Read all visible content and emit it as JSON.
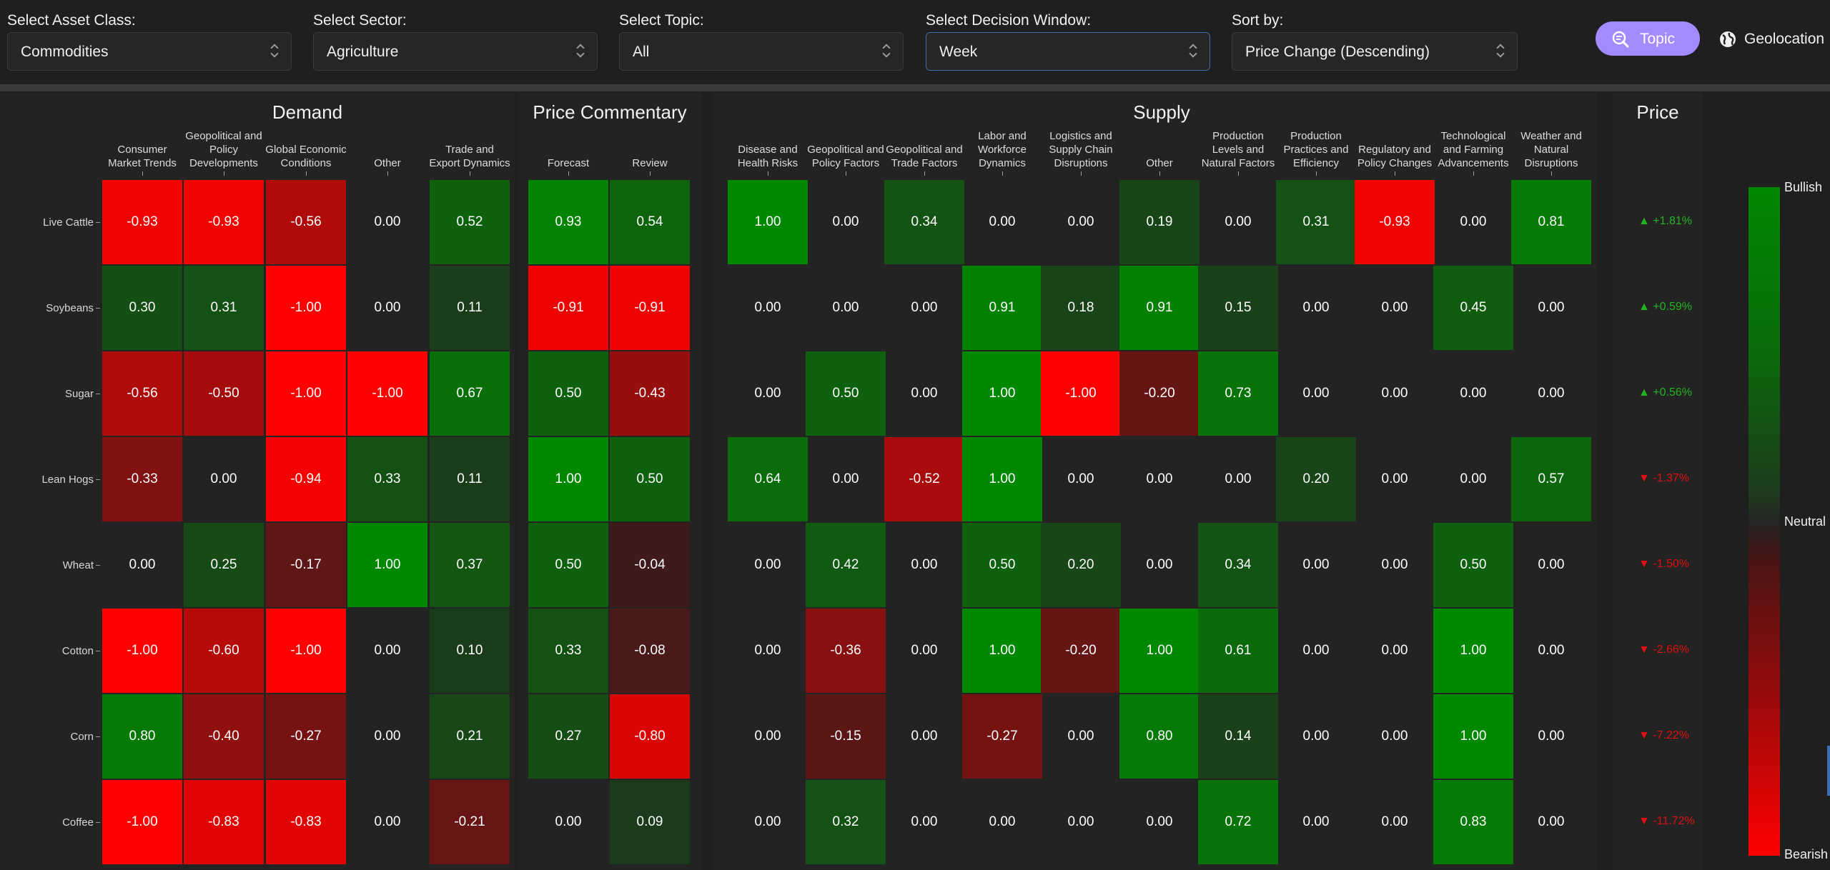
{
  "filters": {
    "asset_class": {
      "label": "Select Asset Class:",
      "value": "Commodities"
    },
    "sector": {
      "label": "Select Sector:",
      "value": "Agriculture"
    },
    "topic": {
      "label": "Select Topic:",
      "value": "All"
    },
    "window": {
      "label": "Select Decision Window:",
      "value": "Week"
    },
    "sort": {
      "label": "Sort by:",
      "value": "Price Change (Descending)"
    }
  },
  "view_toggle": {
    "topic": "Topic",
    "geolocation": "Geolocation",
    "active": "topic"
  },
  "colors": {
    "bullish": "#008800",
    "neutral": "#252525",
    "bearish": "#ff0000",
    "up": "#22b422",
    "down": "#e01010",
    "accent": "#a28bff"
  },
  "heatmap": {
    "groups": [
      {
        "title": "Demand",
        "columns": [
          "Consumer Market Trends",
          "Geopolitical and Policy Developments",
          "Global Economic Conditions",
          "Other",
          "Trade and Export Dynamics"
        ]
      },
      {
        "title": "Price Commentary",
        "columns": [
          "Forecast",
          "Review"
        ]
      },
      {
        "title": "Supply",
        "columns": [
          "Disease and Health Risks",
          "Geopolitical and Policy Factors",
          "Geopolitical and Trade Factors",
          "Labor and Workforce Dynamics",
          "Logistics and Supply Chain Disruptions",
          "Other",
          "Production Levels and Natural Factors",
          "Production Practices and Efficiency",
          "Regulatory and Policy Changes",
          "Technological and Farming Advancements",
          "Weather and Natural Disruptions"
        ]
      }
    ],
    "price_title": "Price",
    "rows": [
      {
        "name": "Live Cattle",
        "demand": [
          "-0.93",
          "-0.93",
          "-0.56",
          "0.00",
          "0.52"
        ],
        "commentary": [
          "0.93",
          "0.54"
        ],
        "supply": [
          "1.00",
          "0.00",
          "0.34",
          "0.00",
          "0.00",
          "0.19",
          "0.00",
          "0.31",
          "-0.93",
          "0.00",
          "0.81"
        ],
        "price": "▲ +1.81%",
        "price_dir": "up"
      },
      {
        "name": "Soybeans",
        "demand": [
          "0.30",
          "0.31",
          "-1.00",
          "0.00",
          "0.11"
        ],
        "commentary": [
          "-0.91",
          "-0.91"
        ],
        "supply": [
          "0.00",
          "0.00",
          "0.00",
          "0.91",
          "0.18",
          "0.91",
          "0.15",
          "0.00",
          "0.00",
          "0.45",
          "0.00"
        ],
        "price": "▲ +0.59%",
        "price_dir": "up"
      },
      {
        "name": "Sugar",
        "demand": [
          "-0.56",
          "-0.50",
          "-1.00",
          "-1.00",
          "0.67"
        ],
        "commentary": [
          "0.50",
          "-0.43"
        ],
        "supply": [
          "0.00",
          "0.50",
          "0.00",
          "1.00",
          "-1.00",
          "-0.20",
          "0.73",
          "0.00",
          "0.00",
          "0.00",
          "0.00"
        ],
        "price": "▲ +0.56%",
        "price_dir": "up"
      },
      {
        "name": "Lean Hogs",
        "demand": [
          "-0.33",
          "0.00",
          "-0.94",
          "0.33",
          "0.11"
        ],
        "commentary": [
          "1.00",
          "0.50"
        ],
        "supply": [
          "0.64",
          "0.00",
          "-0.52",
          "1.00",
          "0.00",
          "0.00",
          "0.00",
          "0.20",
          "0.00",
          "0.00",
          "0.57"
        ],
        "price": "▼ -1.37%",
        "price_dir": "down"
      },
      {
        "name": "Wheat",
        "demand": [
          "0.00",
          "0.25",
          "-0.17",
          "1.00",
          "0.37"
        ],
        "commentary": [
          "0.50",
          "-0.04"
        ],
        "supply": [
          "0.00",
          "0.42",
          "0.00",
          "0.50",
          "0.20",
          "0.00",
          "0.34",
          "0.00",
          "0.00",
          "0.50",
          "0.00"
        ],
        "price": "▼ -1.50%",
        "price_dir": "down"
      },
      {
        "name": "Cotton",
        "demand": [
          "-1.00",
          "-0.60",
          "-1.00",
          "0.00",
          "0.10"
        ],
        "commentary": [
          "0.33",
          "-0.08"
        ],
        "supply": [
          "0.00",
          "-0.36",
          "0.00",
          "1.00",
          "-0.20",
          "1.00",
          "0.61",
          "0.00",
          "0.00",
          "1.00",
          "0.00"
        ],
        "price": "▼ -2.66%",
        "price_dir": "down"
      },
      {
        "name": "Corn",
        "demand": [
          "0.80",
          "-0.40",
          "-0.27",
          "0.00",
          "0.21"
        ],
        "commentary": [
          "0.27",
          "-0.80"
        ],
        "supply": [
          "0.00",
          "-0.15",
          "0.00",
          "-0.27",
          "0.00",
          "0.80",
          "0.14",
          "0.00",
          "0.00",
          "1.00",
          "0.00"
        ],
        "price": "▼ -7.22%",
        "price_dir": "down"
      },
      {
        "name": "Coffee",
        "demand": [
          "-1.00",
          "-0.83",
          "-0.83",
          "0.00",
          "-0.21"
        ],
        "commentary": [
          "0.00",
          "0.09"
        ],
        "supply": [
          "0.00",
          "0.32",
          "0.00",
          "0.00",
          "0.00",
          "0.00",
          "0.72",
          "0.00",
          "0.00",
          "0.83",
          "0.00"
        ],
        "price": "▼ -11.72%",
        "price_dir": "down"
      }
    ]
  },
  "legend": {
    "bullish": "Bullish",
    "neutral": "Neutral",
    "bearish": "Bearish"
  }
}
